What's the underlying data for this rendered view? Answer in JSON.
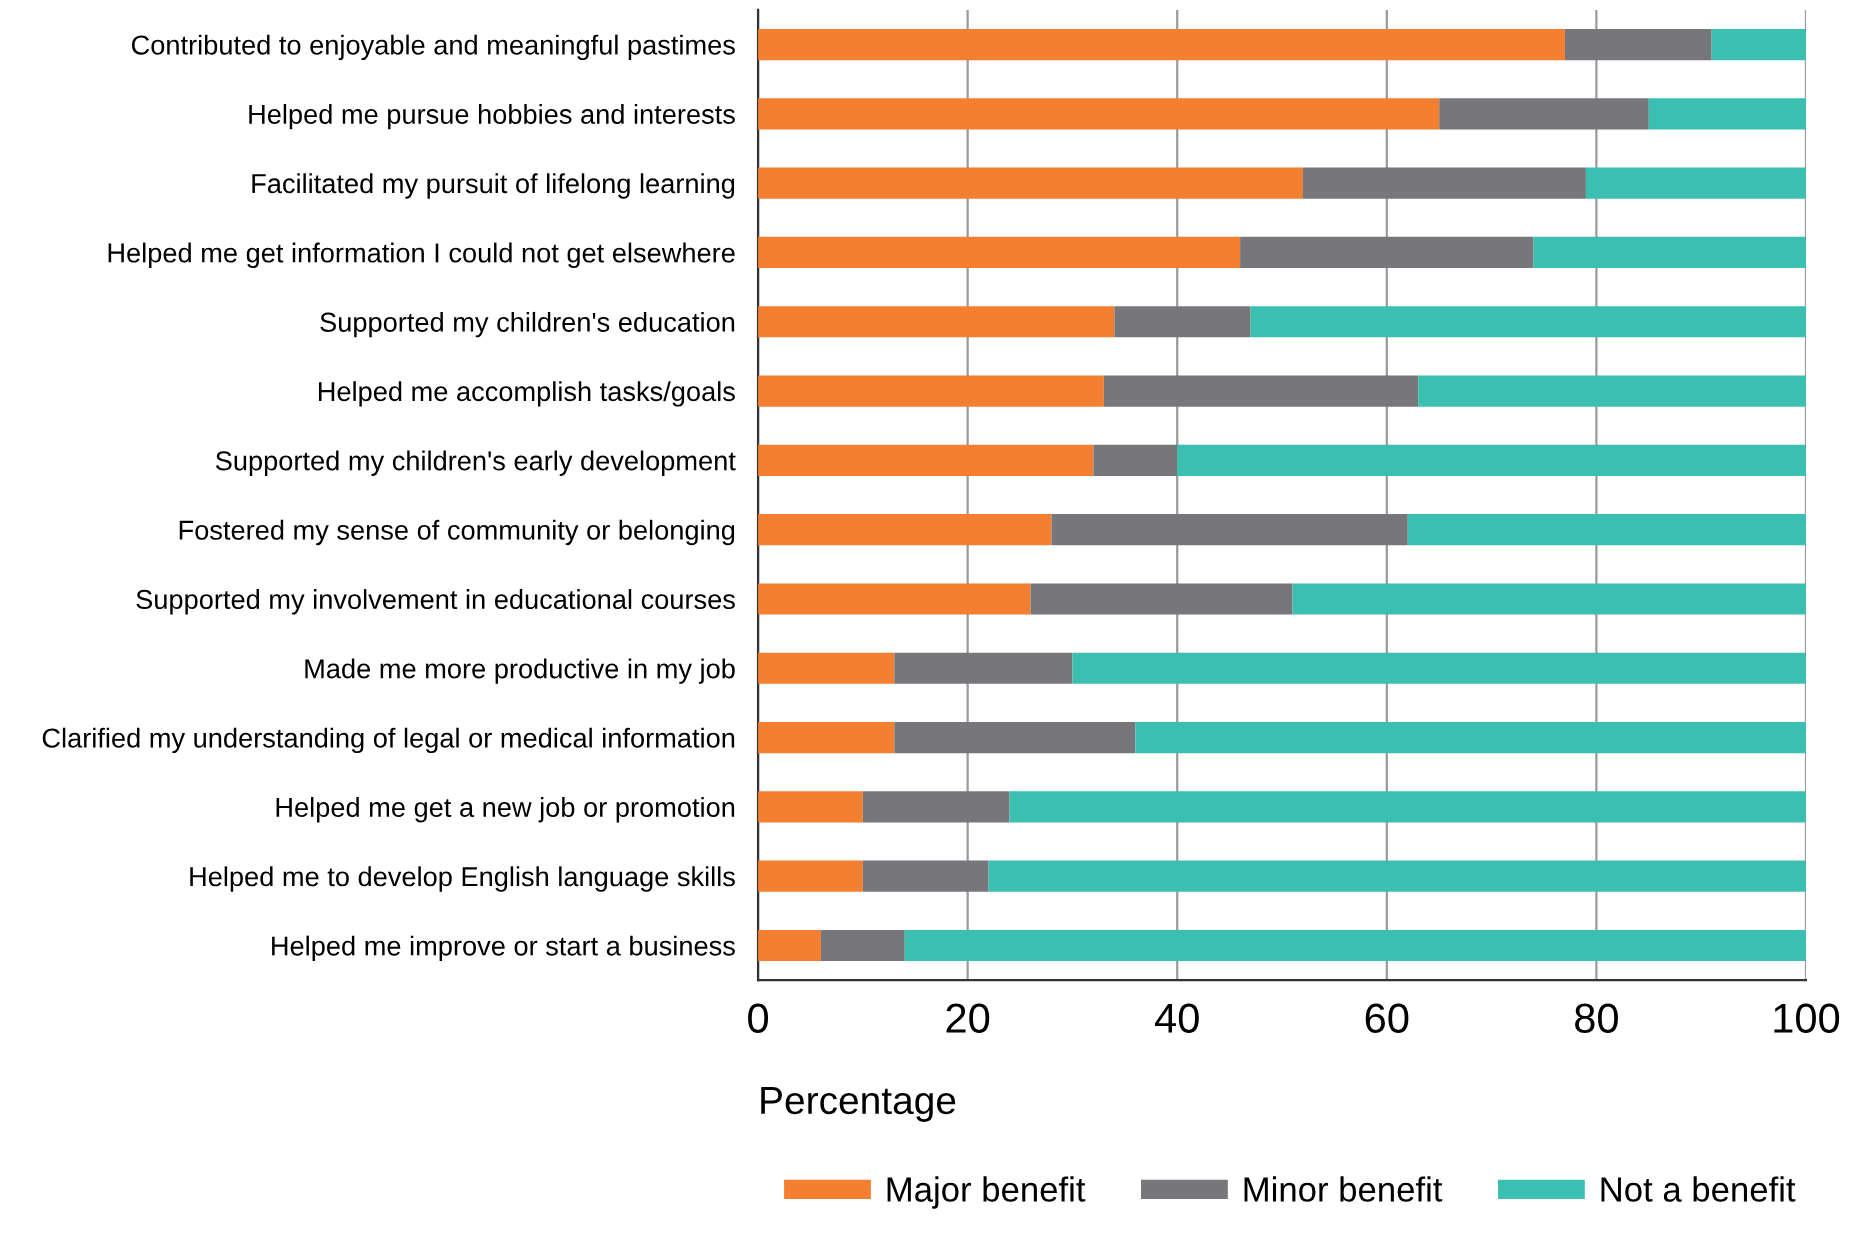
{
  "chart_data": {
    "type": "bar",
    "orientation": "horizontal",
    "stacked": true,
    "xlabel": "Percentage",
    "categories": [
      "Contributed to enjoyable and meaningful pastimes",
      "Helped me pursue hobbies and interests",
      "Facilitated my pursuit of lifelong learning",
      "Helped me get information I could not get elsewhere",
      "Supported my children's education",
      "Helped me accomplish tasks/goals",
      "Supported my children's early development",
      "Fostered my sense of community or belonging",
      "Supported my involvement in educational courses",
      "Made me more productive in my job",
      "Clarified my understanding of legal or medical information",
      "Helped me get a new job or promotion",
      "Helped me to develop English language skills",
      "Helped me improve or start a business"
    ],
    "series": [
      {
        "name": "Major benefit",
        "color": "#f47f30",
        "values": [
          77,
          65,
          52,
          46,
          34,
          33,
          32,
          28,
          26,
          13,
          13,
          10,
          10,
          6
        ]
      },
      {
        "name": "Minor benefit",
        "color": "#77777b",
        "values": [
          14,
          20,
          27,
          28,
          13,
          30,
          8,
          34,
          25,
          17,
          23,
          14,
          12,
          8
        ]
      },
      {
        "name": "Not a benefit",
        "color": "#3bbfb0",
        "values": [
          9,
          15,
          21,
          26,
          53,
          37,
          60,
          38,
          49,
          70,
          64,
          76,
          78,
          86
        ]
      }
    ],
    "xlim": [
      0,
      100
    ],
    "xticks": [
      0,
      20,
      40,
      60,
      80,
      100
    ],
    "grid": "x",
    "legend": "bottom"
  }
}
